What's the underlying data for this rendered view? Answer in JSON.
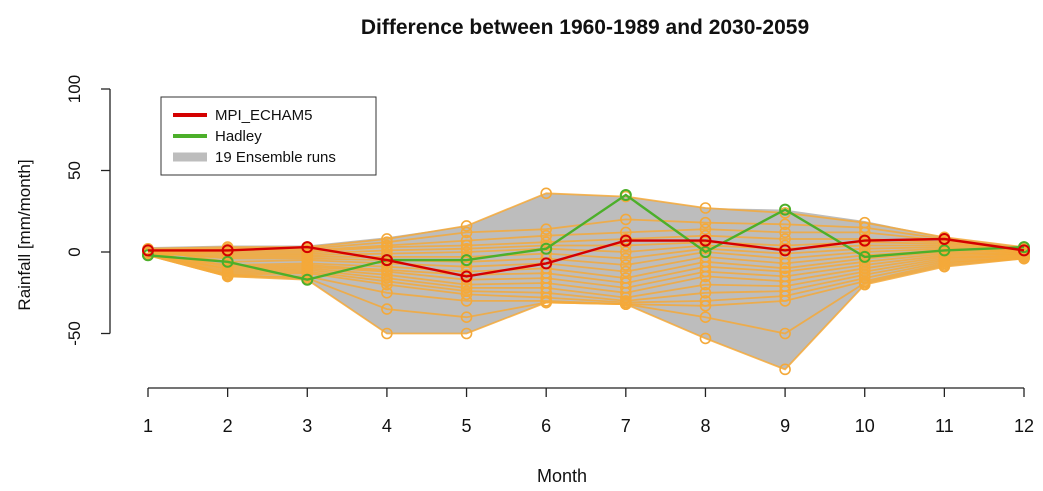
{
  "chart_data": {
    "type": "line",
    "title": "Difference between 1960-1989 and 2030-2059",
    "xlabel": "Month",
    "ylabel": "Rainfall [mm/month]",
    "x": [
      1,
      2,
      3,
      4,
      5,
      6,
      7,
      8,
      9,
      10,
      11,
      12
    ],
    "xlim": [
      1,
      12
    ],
    "ylim": [
      -75,
      100
    ],
    "yticks": [
      -50,
      0,
      50,
      100
    ],
    "grid": false,
    "legend_position": "top-left",
    "ensemble": {
      "name": "19 Ensemble runs",
      "band_color": "#bdbdbd",
      "line_color": "#f4a93a",
      "upper": [
        3,
        4,
        4,
        9,
        16,
        36,
        34,
        27,
        26,
        19,
        9,
        3
      ],
      "lower": [
        -2,
        -15,
        -17,
        -50,
        -50,
        -31,
        -32,
        -53,
        -72,
        -20,
        -9,
        -4
      ],
      "runs": [
        [
          2,
          3,
          3,
          8,
          16,
          36,
          34,
          27,
          24,
          18,
          9,
          3
        ],
        [
          1,
          2,
          2,
          6,
          12,
          14,
          20,
          18,
          17,
          15,
          8,
          2
        ],
        [
          0,
          1,
          1,
          4,
          7,
          10,
          12,
          14,
          12,
          12,
          7,
          1
        ],
        [
          -1,
          0,
          0,
          3,
          4,
          6,
          8,
          10,
          8,
          8,
          6,
          0
        ],
        [
          1,
          -1,
          -1,
          1,
          2,
          4,
          4,
          6,
          4,
          6,
          5,
          1
        ],
        [
          0,
          -2,
          -2,
          -1,
          0,
          2,
          0,
          4,
          2,
          4,
          4,
          0
        ],
        [
          -1,
          -3,
          -3,
          -3,
          -3,
          -1,
          -4,
          2,
          -1,
          2,
          3,
          -1
        ],
        [
          0,
          -4,
          -4,
          -5,
          -6,
          -4,
          -8,
          0,
          -4,
          0,
          2,
          0
        ],
        [
          1,
          -6,
          -5,
          -7,
          -9,
          -7,
          -12,
          -3,
          -7,
          -2,
          1,
          -1
        ],
        [
          -1,
          -8,
          -7,
          -9,
          -12,
          -10,
          -16,
          -6,
          -10,
          -4,
          0,
          -2
        ],
        [
          0,
          -9,
          -8,
          -11,
          -14,
          -13,
          -19,
          -9,
          -12,
          -6,
          -1,
          -1
        ],
        [
          -2,
          -10,
          -9,
          -12,
          -17,
          -16,
          -22,
          -12,
          -15,
          -8,
          -2,
          -2
        ],
        [
          1,
          -11,
          -10,
          -14,
          -20,
          -19,
          -25,
          -15,
          -18,
          -10,
          -3,
          -3
        ],
        [
          0,
          -12,
          -11,
          -16,
          -22,
          -22,
          -28,
          -20,
          -21,
          -12,
          -4,
          -2
        ],
        [
          -1,
          -13,
          -12,
          -18,
          -24,
          -25,
          -30,
          -25,
          -24,
          -14,
          -5,
          -3
        ],
        [
          0,
          -14,
          -13,
          -20,
          -26,
          -28,
          -31,
          -30,
          -27,
          -16,
          -6,
          -4
        ],
        [
          -2,
          -15,
          -15,
          -25,
          -30,
          -30,
          -32,
          -33,
          -30,
          -18,
          -7,
          -3
        ],
        [
          -1,
          -14,
          -16,
          -35,
          -40,
          -31,
          -32,
          -40,
          -50,
          -19,
          -8,
          -4
        ],
        [
          -2,
          -15,
          -17,
          -50,
          -50,
          -31,
          -32,
          -53,
          -72,
          -20,
          -9,
          -4
        ]
      ]
    },
    "series": [
      {
        "name": "MPI_ECHAM5",
        "color": "#d40000",
        "values": [
          1,
          1,
          3,
          -5,
          -15,
          -7,
          7,
          7,
          1,
          7,
          8,
          1
        ]
      },
      {
        "name": "Hadley",
        "color": "#4caf2a",
        "values": [
          -2,
          -6,
          -17,
          -5,
          -5,
          2,
          35,
          0,
          26,
          -3,
          1,
          3
        ]
      }
    ]
  },
  "legend": {
    "items": [
      {
        "label": "MPI_ECHAM5",
        "color": "#d40000"
      },
      {
        "label": "Hadley",
        "color": "#4caf2a"
      },
      {
        "label": "19 Ensemble runs",
        "color": "#bdbdbd"
      }
    ]
  }
}
